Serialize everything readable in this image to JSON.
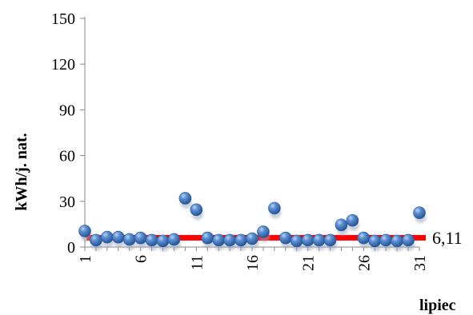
{
  "chart_data": {
    "type": "scatter",
    "xlabel": "lipiec",
    "ylabel": "kWh/j. nat.",
    "ylim": [
      0,
      150
    ],
    "yticks": [
      "0",
      "30",
      "60",
      "90",
      "120",
      "150"
    ],
    "xlim": [
      1,
      31
    ],
    "xticks": [
      "1",
      "6",
      "11",
      "16",
      "21",
      "26",
      "31"
    ],
    "grid": false,
    "series": [
      {
        "marker": "sphere",
        "color": "#3a6fba",
        "x": [
          1,
          2,
          3,
          4,
          5,
          6,
          7,
          8,
          9,
          10,
          11,
          12,
          13,
          14,
          15,
          16,
          17,
          18,
          19,
          20,
          21,
          22,
          23,
          24,
          25,
          26,
          27,
          28,
          29,
          30,
          31
        ],
        "y": [
          10.5,
          4.5,
          6.5,
          6.5,
          5,
          6,
          4.5,
          4,
          5,
          32,
          24.5,
          6,
          4.5,
          4.5,
          4.5,
          5.5,
          10,
          25.5,
          6,
          4,
          4.5,
          4.5,
          4.5,
          14.5,
          17.5,
          6,
          4,
          4.5,
          4,
          4.5,
          22.5
        ]
      }
    ],
    "reference_line": {
      "value": 6.11,
      "label": "6,11",
      "color": "#ff0000"
    }
  }
}
